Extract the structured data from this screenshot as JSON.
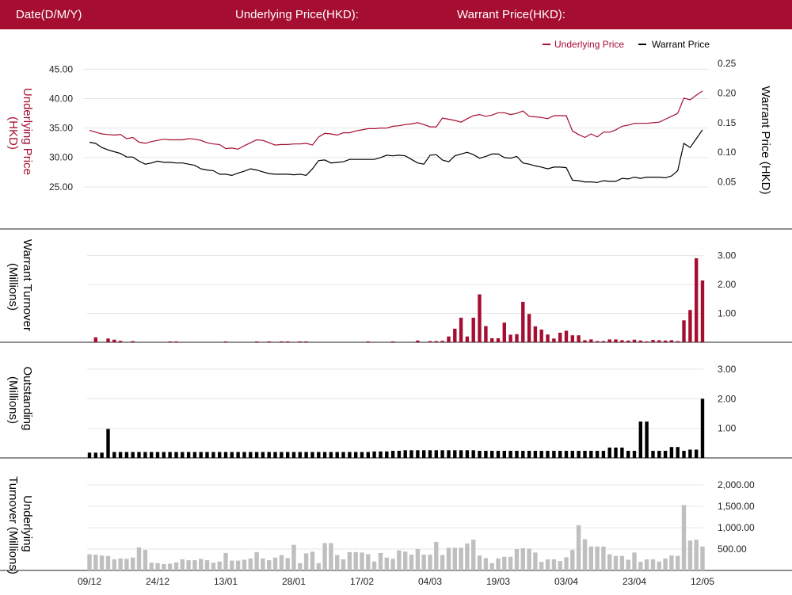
{
  "header": {
    "date_label": "Date(D/M/Y)",
    "underlying_label": "Underlying Price(HKD):",
    "warrant_label": "Warrant Price(HKD):"
  },
  "colors": {
    "accent": "#a50e31",
    "warrant_line": "#000000",
    "outstanding_bar": "#000000",
    "underlying_turnover_bar": "#bfbfbf",
    "grid": "#e6e6e6"
  },
  "x_axis": {
    "tick_labels": [
      "09/12",
      "24/12",
      "13/01",
      "28/01",
      "17/02",
      "04/03",
      "19/03",
      "03/04",
      "23/04",
      "12/05"
    ],
    "tick_index": [
      0,
      11,
      22,
      33,
      44,
      55,
      66,
      77,
      88,
      99
    ]
  },
  "chart_data": [
    {
      "type": "line",
      "legend": [
        "Underlying Price",
        "Warrant Price"
      ],
      "legend_position": "top-right",
      "left_axis": {
        "label": "Underlying Price (HKD)",
        "ticks": [
          "25.00",
          "30.00",
          "35.00",
          "40.00",
          "45.00"
        ],
        "range": [
          20.8,
          46.0
        ]
      },
      "right_axis": {
        "label": "Warrant  Price (HKD)",
        "ticks": [
          "0.05",
          "0.10",
          "0.15",
          "0.20",
          "0.25"
        ],
        "range": [
          0.0,
          0.25
        ]
      },
      "series": [
        {
          "name": "Underlying Price",
          "axis": "left",
          "values": [
            34.6,
            34.3,
            34.0,
            33.9,
            33.8,
            33.9,
            33.2,
            33.4,
            32.6,
            32.4,
            32.7,
            32.9,
            33.1,
            33.0,
            33.0,
            33.0,
            33.2,
            33.1,
            32.9,
            32.5,
            32.3,
            32.2,
            31.5,
            31.6,
            31.4,
            32.0,
            32.5,
            33.0,
            32.9,
            32.5,
            32.1,
            32.2,
            32.2,
            32.3,
            32.3,
            32.4,
            32.1,
            33.5,
            34.1,
            34.0,
            33.8,
            34.2,
            34.2,
            34.5,
            34.7,
            34.9,
            34.9,
            35.0,
            35.0,
            35.3,
            35.4,
            35.6,
            35.7,
            35.9,
            35.6,
            35.2,
            35.2,
            36.7,
            36.5,
            36.3,
            36.0,
            36.6,
            37.1,
            37.3,
            37.0,
            37.2,
            37.6,
            37.6,
            37.3,
            37.5,
            37.9,
            37.0,
            36.9,
            36.8,
            36.6,
            37.1,
            37.1,
            37.1,
            34.5,
            33.9,
            33.4,
            34.0,
            33.5,
            34.3,
            34.3,
            34.7,
            35.3,
            35.5,
            35.8,
            35.8,
            35.8,
            35.9,
            36.0,
            36.5,
            37.0,
            37.5,
            40.1,
            39.8,
            40.6,
            41.3
          ]
        },
        {
          "name": "Warrant Price",
          "axis": "right",
          "values": [
            0.117,
            0.115,
            0.108,
            0.104,
            0.101,
            0.098,
            0.092,
            0.092,
            0.085,
            0.08,
            0.082,
            0.085,
            0.083,
            0.083,
            0.082,
            0.082,
            0.08,
            0.078,
            0.072,
            0.07,
            0.069,
            0.063,
            0.063,
            0.061,
            0.065,
            0.068,
            0.072,
            0.07,
            0.067,
            0.064,
            0.063,
            0.063,
            0.063,
            0.062,
            0.063,
            0.061,
            0.072,
            0.086,
            0.087,
            0.082,
            0.083,
            0.084,
            0.088,
            0.088,
            0.088,
            0.088,
            0.088,
            0.091,
            0.095,
            0.094,
            0.095,
            0.094,
            0.088,
            0.082,
            0.08,
            0.095,
            0.096,
            0.087,
            0.084,
            0.094,
            0.097,
            0.1,
            0.096,
            0.09,
            0.093,
            0.097,
            0.097,
            0.091,
            0.09,
            0.093,
            0.082,
            0.08,
            0.077,
            0.075,
            0.072,
            0.075,
            0.075,
            0.074,
            0.053,
            0.052,
            0.05,
            0.05,
            0.049,
            0.052,
            0.051,
            0.051,
            0.056,
            0.055,
            0.058,
            0.056,
            0.058,
            0.058,
            0.058,
            0.057,
            0.06,
            0.069,
            0.115,
            0.108,
            0.123,
            0.138
          ]
        }
      ]
    },
    {
      "type": "bar",
      "ylabel": "Warrant  Turnover (Millions)",
      "ticks": [
        "1.00",
        "2.00",
        "3.00"
      ],
      "range": [
        0,
        3.4
      ],
      "values": [
        0,
        0.17,
        0,
        0.13,
        0.09,
        0.05,
        0,
        0.04,
        0,
        0,
        0,
        0,
        0,
        0.03,
        0.03,
        0,
        0,
        0,
        0,
        0,
        0,
        0,
        0.03,
        0,
        0,
        0,
        0,
        0.03,
        0,
        0.03,
        0,
        0.03,
        0.03,
        0,
        0.03,
        0.03,
        0,
        0,
        0,
        0,
        0,
        0,
        0,
        0,
        0,
        0.03,
        0,
        0,
        0,
        0.03,
        0,
        0,
        0,
        0.06,
        0,
        0.04,
        0.04,
        0.05,
        0.2,
        0.47,
        0.85,
        0.2,
        0.85,
        1.66,
        0.56,
        0.14,
        0.14,
        0.68,
        0.26,
        0.28,
        1.4,
        0.98,
        0.55,
        0.44,
        0.27,
        0.13,
        0.33,
        0.4,
        0.24,
        0.24,
        0.07,
        0.1,
        0.04,
        0.04,
        0.1,
        0.1,
        0.07,
        0.06,
        0.09,
        0.06,
        0.03,
        0.08,
        0.07,
        0.06,
        0.07,
        0.04,
        0.76,
        1.12,
        2.91,
        2.14
      ]
    },
    {
      "type": "bar",
      "ylabel": "Outstanding (Millions)",
      "ticks": [
        "1.00",
        "2.00",
        "3.00"
      ],
      "range": [
        0,
        3.4
      ],
      "values": [
        0.18,
        0.18,
        0.18,
        0.98,
        0.2,
        0.2,
        0.2,
        0.2,
        0.2,
        0.2,
        0.2,
        0.2,
        0.2,
        0.2,
        0.2,
        0.2,
        0.2,
        0.2,
        0.2,
        0.2,
        0.2,
        0.2,
        0.2,
        0.2,
        0.2,
        0.2,
        0.2,
        0.2,
        0.2,
        0.2,
        0.2,
        0.2,
        0.2,
        0.2,
        0.2,
        0.2,
        0.2,
        0.2,
        0.2,
        0.2,
        0.2,
        0.2,
        0.2,
        0.2,
        0.2,
        0.2,
        0.22,
        0.22,
        0.22,
        0.24,
        0.24,
        0.26,
        0.26,
        0.26,
        0.26,
        0.26,
        0.26,
        0.26,
        0.26,
        0.26,
        0.26,
        0.26,
        0.26,
        0.24,
        0.24,
        0.24,
        0.24,
        0.24,
        0.24,
        0.24,
        0.24,
        0.24,
        0.24,
        0.24,
        0.24,
        0.24,
        0.24,
        0.24,
        0.24,
        0.24,
        0.24,
        0.24,
        0.24,
        0.24,
        0.35,
        0.35,
        0.35,
        0.24,
        0.24,
        1.23,
        1.23,
        0.24,
        0.24,
        0.24,
        0.37,
        0.37,
        0.24,
        0.28,
        0.28,
        2.0
      ]
    },
    {
      "type": "bar",
      "ylabel": "Underlying Turnover (Millions)",
      "ticks": [
        "500.00",
        "1,000.00",
        "1,500.00",
        "2,000.00"
      ],
      "range": [
        0,
        2300
      ],
      "values": [
        380,
        370,
        350,
        340,
        260,
        280,
        270,
        300,
        540,
        480,
        180,
        170,
        150,
        160,
        190,
        260,
        240,
        240,
        270,
        240,
        180,
        210,
        410,
        230,
        230,
        250,
        280,
        430,
        280,
        240,
        300,
        360,
        290,
        600,
        170,
        400,
        440,
        170,
        640,
        640,
        360,
        260,
        430,
        430,
        420,
        380,
        210,
        410,
        300,
        270,
        470,
        440,
        370,
        500,
        370,
        370,
        670,
        360,
        530,
        530,
        530,
        630,
        720,
        350,
        290,
        170,
        280,
        320,
        320,
        500,
        520,
        510,
        420,
        200,
        260,
        260,
        220,
        310,
        480,
        1060,
        730,
        560,
        560,
        560,
        380,
        340,
        340,
        250,
        420,
        200,
        260,
        260,
        210,
        280,
        350,
        340,
        1530,
        700,
        720,
        560
      ]
    }
  ]
}
